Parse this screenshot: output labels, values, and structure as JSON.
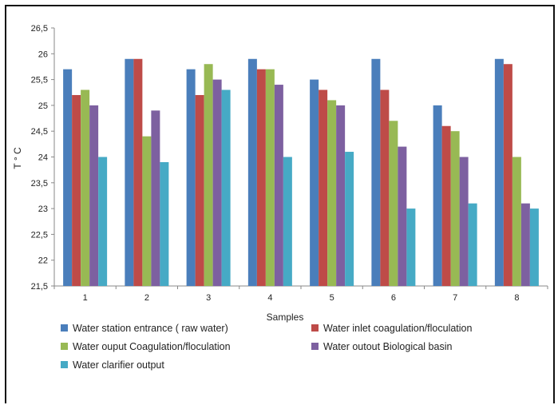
{
  "chart_data": {
    "type": "bar",
    "categories": [
      "1",
      "2",
      "3",
      "4",
      "5",
      "6",
      "7",
      "8"
    ],
    "series": [
      {
        "name": "Water station entrance ( raw water)",
        "color": "#4a7ebb",
        "values": [
          25.7,
          25.9,
          25.7,
          25.9,
          25.5,
          25.9,
          25.0,
          25.9
        ]
      },
      {
        "name": "Water inlet coagulation/floculation",
        "color": "#be4b48",
        "values": [
          25.2,
          25.9,
          25.2,
          25.7,
          25.3,
          25.3,
          24.6,
          25.8
        ]
      },
      {
        "name": "Water ouput Coagulation/floculation",
        "color": "#98b954",
        "values": [
          25.3,
          24.4,
          25.8,
          25.7,
          25.1,
          24.7,
          24.5,
          24.0
        ]
      },
      {
        "name": "Water outout Biological basin",
        "color": "#7d60a0",
        "values": [
          25.0,
          24.9,
          25.5,
          25.4,
          25.0,
          24.2,
          24.0,
          23.1
        ]
      },
      {
        "name": "Water clarifier output",
        "color": "#46aac5",
        "values": [
          24.0,
          23.9,
          25.3,
          24.0,
          24.1,
          23.0,
          23.1,
          23.0
        ]
      }
    ],
    "xlabel": "Samples",
    "ylabel": "T ° C",
    "ylim": [
      21.5,
      26.5
    ],
    "yticks": [
      "21,5",
      "22",
      "22,5",
      "23",
      "23,5",
      "24",
      "24,5",
      "25",
      "25,5",
      "26",
      "26,5"
    ],
    "grid": false,
    "legend_position": "bottom"
  }
}
